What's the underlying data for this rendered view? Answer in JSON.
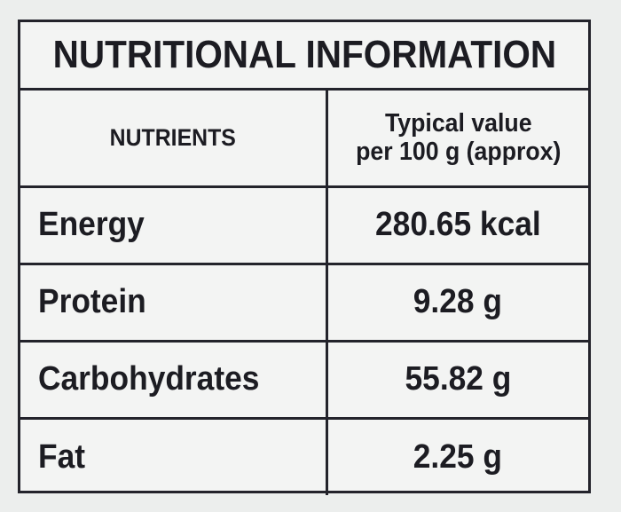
{
  "title": "NUTRITIONAL INFORMATION",
  "table": {
    "headers": {
      "nutrients": "NUTRIENTS",
      "value_line1": "Typical value",
      "value_line2": "per 100 g (approx)"
    },
    "rows": [
      {
        "name": "Energy",
        "value": "280.65 kcal"
      },
      {
        "name": "Protein",
        "value": "9.28 g"
      },
      {
        "name": "Carbohydrates",
        "value": "55.82 g"
      },
      {
        "name": "Fat",
        "value": "2.25 g"
      }
    ]
  },
  "colors": {
    "background": "#eceeed",
    "panel": "#f3f4f3",
    "border": "#23232b",
    "text": "#1c1c22"
  }
}
